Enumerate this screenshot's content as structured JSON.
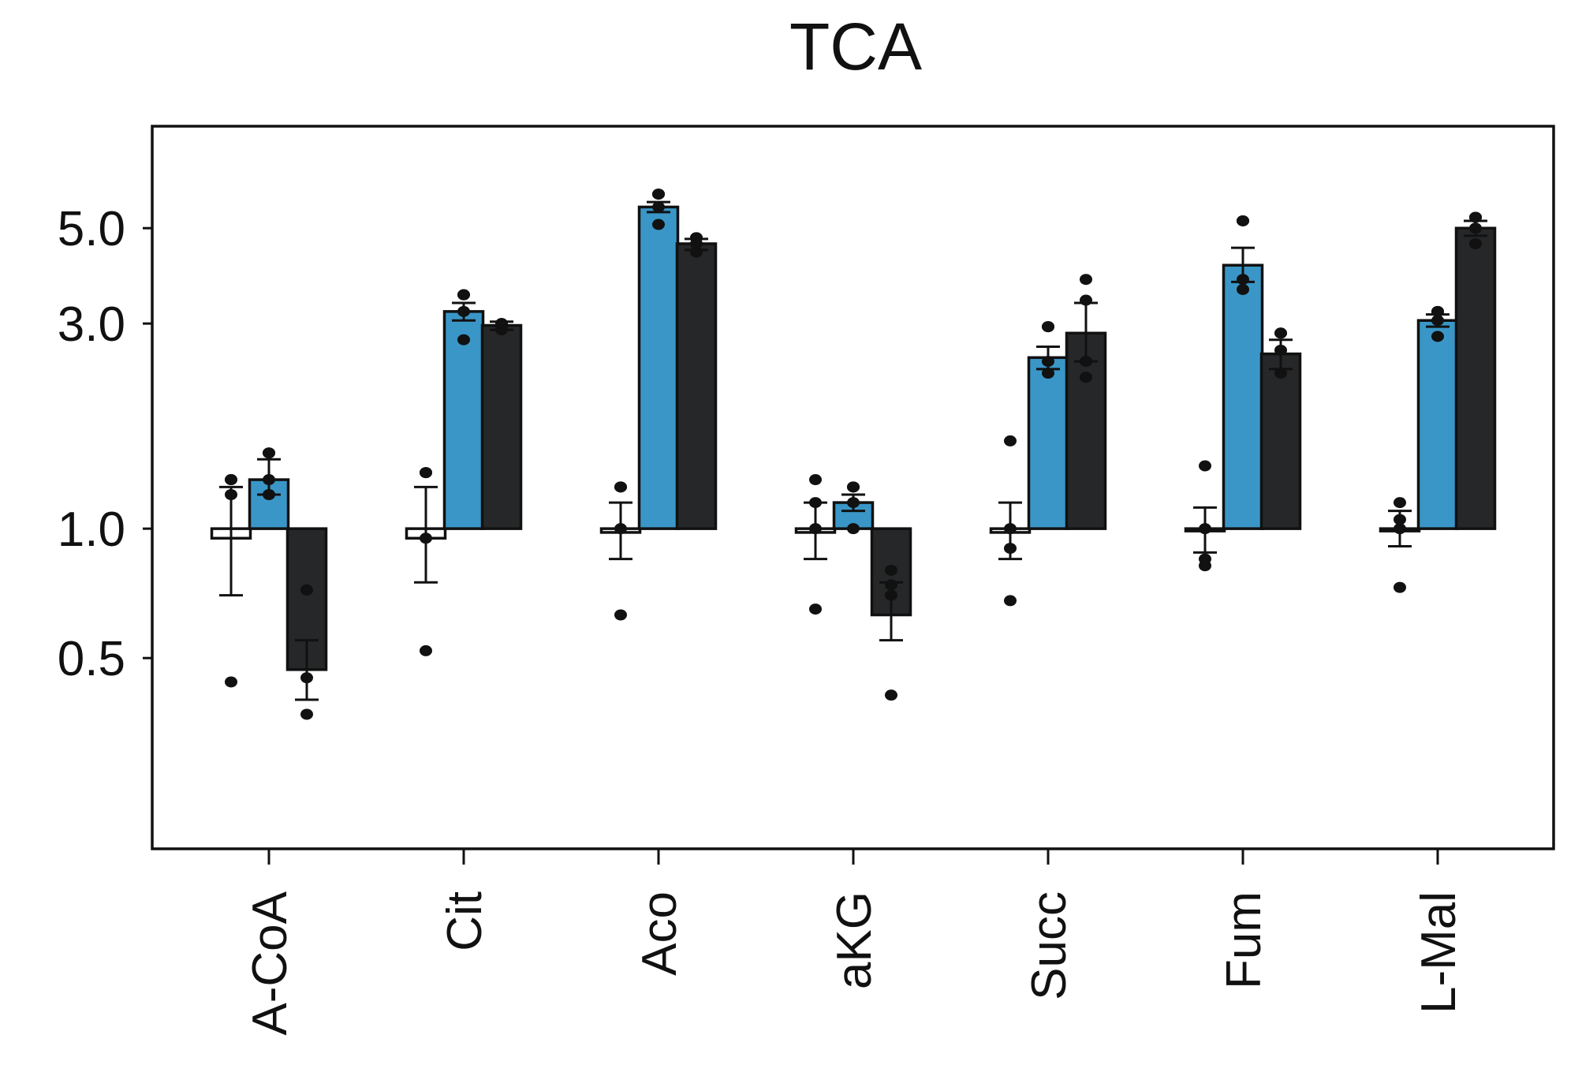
{
  "chart_data": {
    "type": "bar",
    "title": "TCA",
    "xlabel": "",
    "ylabel": "",
    "yscale": "log",
    "ylim": [
      0.18,
      8.0
    ],
    "baseline": 1.0,
    "yticks": [
      {
        "value": 0.5,
        "label": "0.5"
      },
      {
        "value": 1.0,
        "label": "1.0"
      },
      {
        "value": 3.0,
        "label": "3.0"
      },
      {
        "value": 5.0,
        "label": "5.0"
      }
    ],
    "categories": [
      "A-CoA",
      "Cit",
      "Aco",
      "aKG",
      "Succ",
      "Fum",
      "L-Mal"
    ],
    "series": [
      {
        "color": "#ffffff",
        "values": [
          0.95,
          0.95,
          0.98,
          0.98,
          0.98,
          0.99,
          1.0
        ],
        "err": [
          [
            0.7,
            1.25
          ],
          [
            0.75,
            1.25
          ],
          [
            0.85,
            1.15
          ],
          [
            0.85,
            1.15
          ],
          [
            0.85,
            1.15
          ],
          [
            0.88,
            1.12
          ],
          [
            0.91,
            1.1
          ]
        ],
        "points": [
          [
            0.44,
            1.2,
            1.3,
            1.3
          ],
          [
            0.52,
            0.95,
            1.35,
            1.35
          ],
          [
            0.63,
            1.0,
            1.25,
            1.25
          ],
          [
            0.65,
            1.0,
            1.15,
            1.3
          ],
          [
            0.68,
            0.9,
            1.0,
            1.6
          ],
          [
            0.82,
            0.85,
            1.0,
            1.4
          ],
          [
            0.73,
            1.0,
            1.05,
            1.15
          ]
        ]
      },
      {
        "color": "#3a96c7",
        "values": [
          1.3,
          3.2,
          5.6,
          1.15,
          2.5,
          4.1,
          3.05
        ],
        "err": [
          [
            1.2,
            1.45
          ],
          [
            3.05,
            3.35
          ],
          [
            5.45,
            5.75
          ],
          [
            1.1,
            1.2
          ],
          [
            2.35,
            2.65
          ],
          [
            3.75,
            4.5
          ],
          [
            2.95,
            3.15
          ]
        ],
        "points": [
          [
            1.2,
            1.3,
            1.5,
            1.5
          ],
          [
            2.75,
            3.2,
            3.5,
            3.5
          ],
          [
            5.1,
            5.6,
            6.0,
            6.0
          ],
          [
            1.0,
            1.15,
            1.25,
            1.25
          ],
          [
            2.3,
            2.45,
            2.95,
            2.95
          ],
          [
            3.6,
            3.8,
            5.2,
            5.2
          ],
          [
            2.8,
            3.05,
            3.2,
            3.2
          ]
        ]
      },
      {
        "color": "#262728",
        "values": [
          0.47,
          2.97,
          4.6,
          0.63,
          2.85,
          2.55,
          5.0
        ],
        "err": [
          [
            0.4,
            0.55
          ],
          [
            2.9,
            3.03
          ],
          [
            4.45,
            4.72
          ],
          [
            0.55,
            0.75
          ],
          [
            2.45,
            3.35
          ],
          [
            2.35,
            2.75
          ],
          [
            4.8,
            5.2
          ]
        ],
        "points": [
          [
            0.37,
            0.45,
            0.72,
            0.72
          ],
          [
            2.9,
            2.95,
            3.0,
            3.0
          ],
          [
            4.4,
            4.6,
            4.75,
            4.75
          ],
          [
            0.41,
            0.7,
            0.74,
            0.8
          ],
          [
            2.25,
            2.45,
            3.4,
            3.8
          ],
          [
            2.3,
            2.6,
            2.85,
            2.85
          ],
          [
            4.6,
            5.0,
            5.3,
            5.3
          ]
        ]
      }
    ],
    "grid": false,
    "legend": "none"
  }
}
